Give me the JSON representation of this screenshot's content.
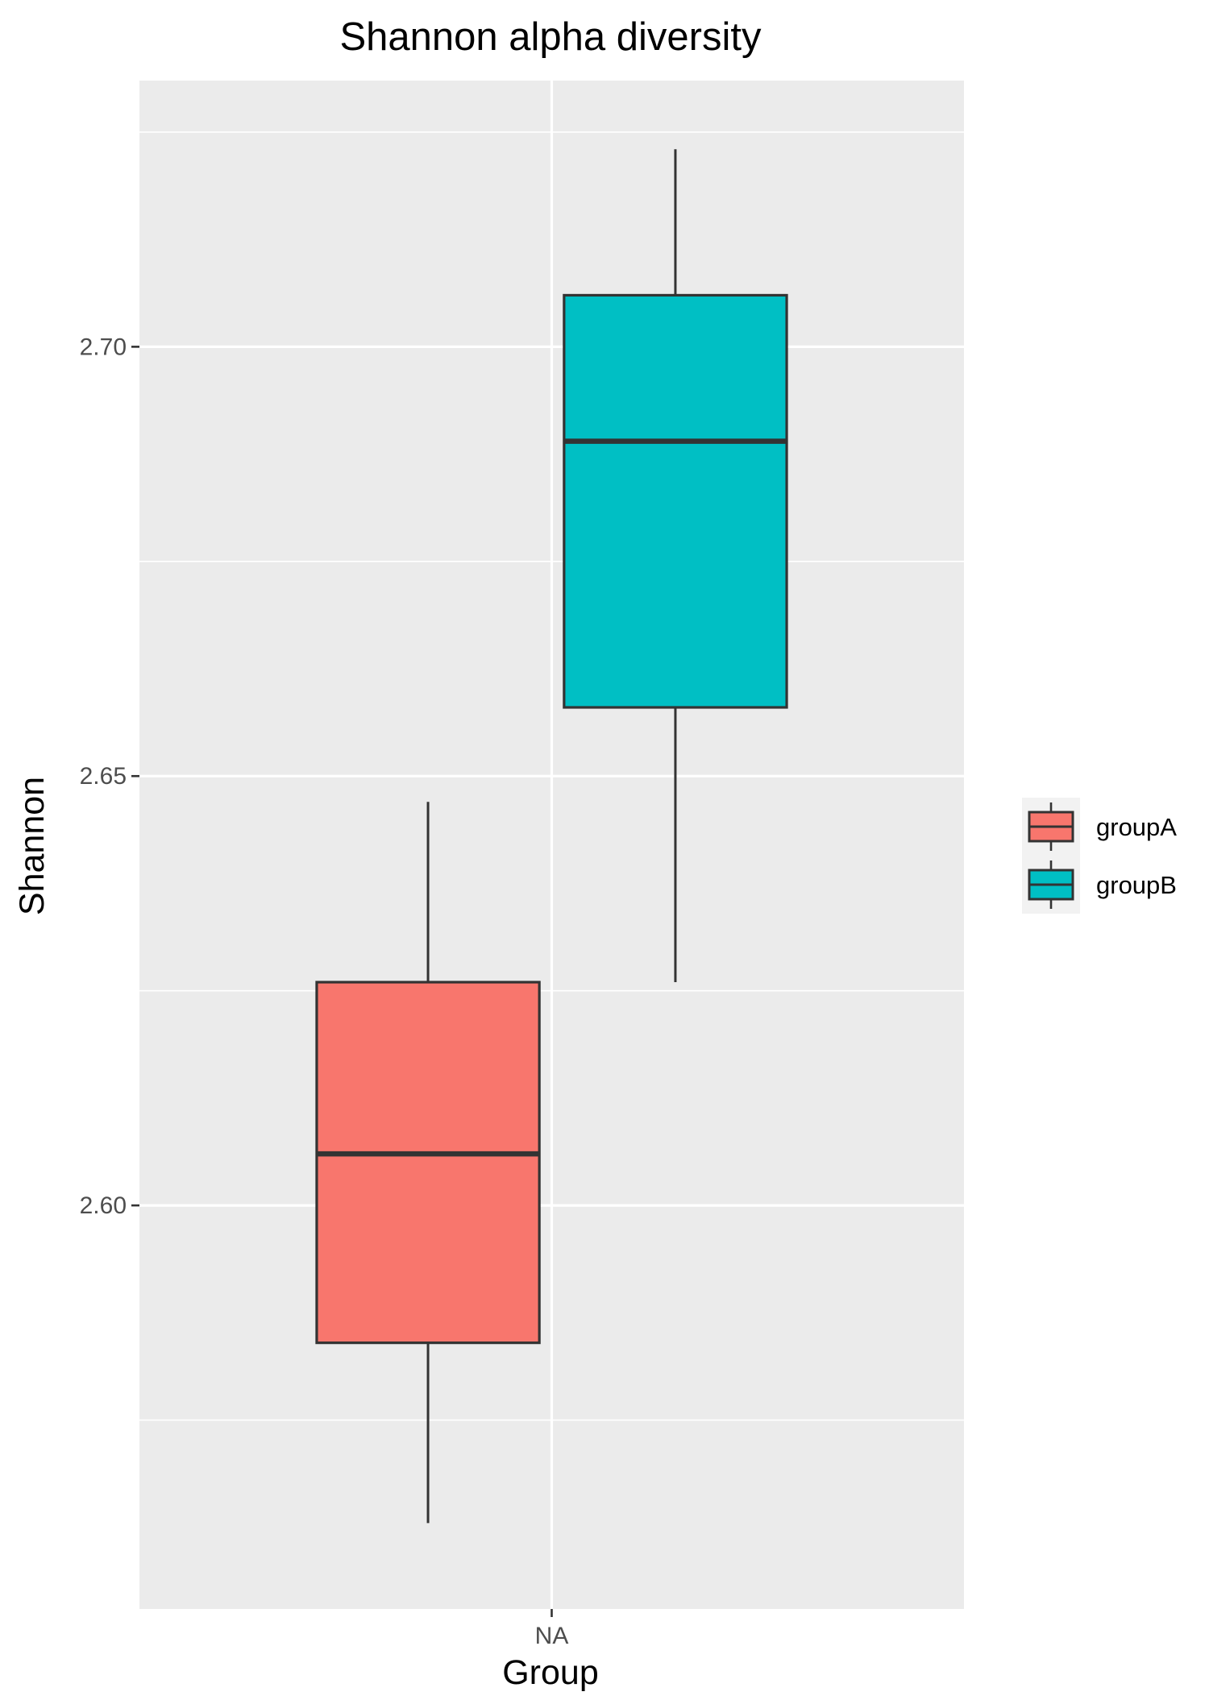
{
  "chart_data": {
    "type": "boxplot",
    "title": "Shannon alpha diversity",
    "xlabel": "Group",
    "ylabel": "Shannon",
    "categories": [
      "NA"
    ],
    "y_ticks": [
      "2.60",
      "2.65",
      "2.70"
    ],
    "y_tick_values": [
      2.6,
      2.65,
      2.7
    ],
    "ylim": [
      2.553,
      2.731
    ],
    "grid": true,
    "legend": {
      "position": "right"
    },
    "series": [
      {
        "name": "groupA",
        "color": "#F8766D",
        "whisker_low": 2.563,
        "q1": 2.584,
        "median": 2.606,
        "q3": 2.626,
        "whisker_high": 2.647
      },
      {
        "name": "groupB",
        "color": "#00BFC4",
        "whisker_low": 2.626,
        "q1": 2.658,
        "median": 2.689,
        "q3": 2.706,
        "whisker_high": 2.723
      }
    ]
  }
}
